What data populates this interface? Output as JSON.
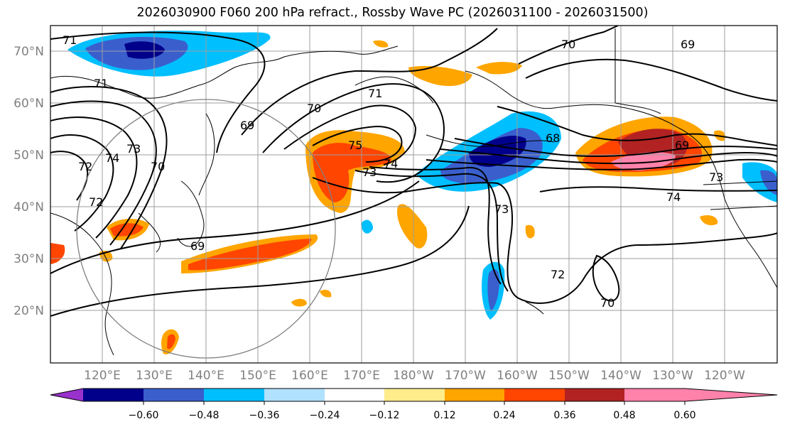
{
  "title": "2026030900 F060 200 hPa refract., Rossby Wave PC (2026031100 - 2026031500)",
  "map": {
    "lat_labels": [
      "70°N",
      "60°N",
      "50°N",
      "40°N",
      "30°N",
      "20°N"
    ],
    "lon_labels": [
      "120°E",
      "130°E",
      "140°E",
      "150°E",
      "160°E",
      "170°E",
      "180°W",
      "170°W",
      "160°W",
      "150°W",
      "140°W",
      "130°W",
      "120°W"
    ],
    "contour_labels": [
      "71",
      "71",
      "69",
      "70",
      "71",
      "75",
      "73",
      "74",
      "72",
      "74",
      "73",
      "72",
      "70",
      "69",
      "70",
      "69",
      "73",
      "68",
      "69",
      "73",
      "74",
      "70",
      "72"
    ]
  },
  "colorbar": {
    "ticks": [
      "−0.60",
      "−0.48",
      "−0.36",
      "−0.24",
      "−0.12",
      "0.12",
      "0.24",
      "0.36",
      "0.48",
      "0.60"
    ],
    "colors": [
      "#9932cc",
      "#00008b",
      "#3a5fcd",
      "#00bfff",
      "#b0e2ff",
      "#ffffff",
      "#ffec8b",
      "#ffa500",
      "#ff4500",
      "#b22222",
      "#ff82ab"
    ]
  }
}
